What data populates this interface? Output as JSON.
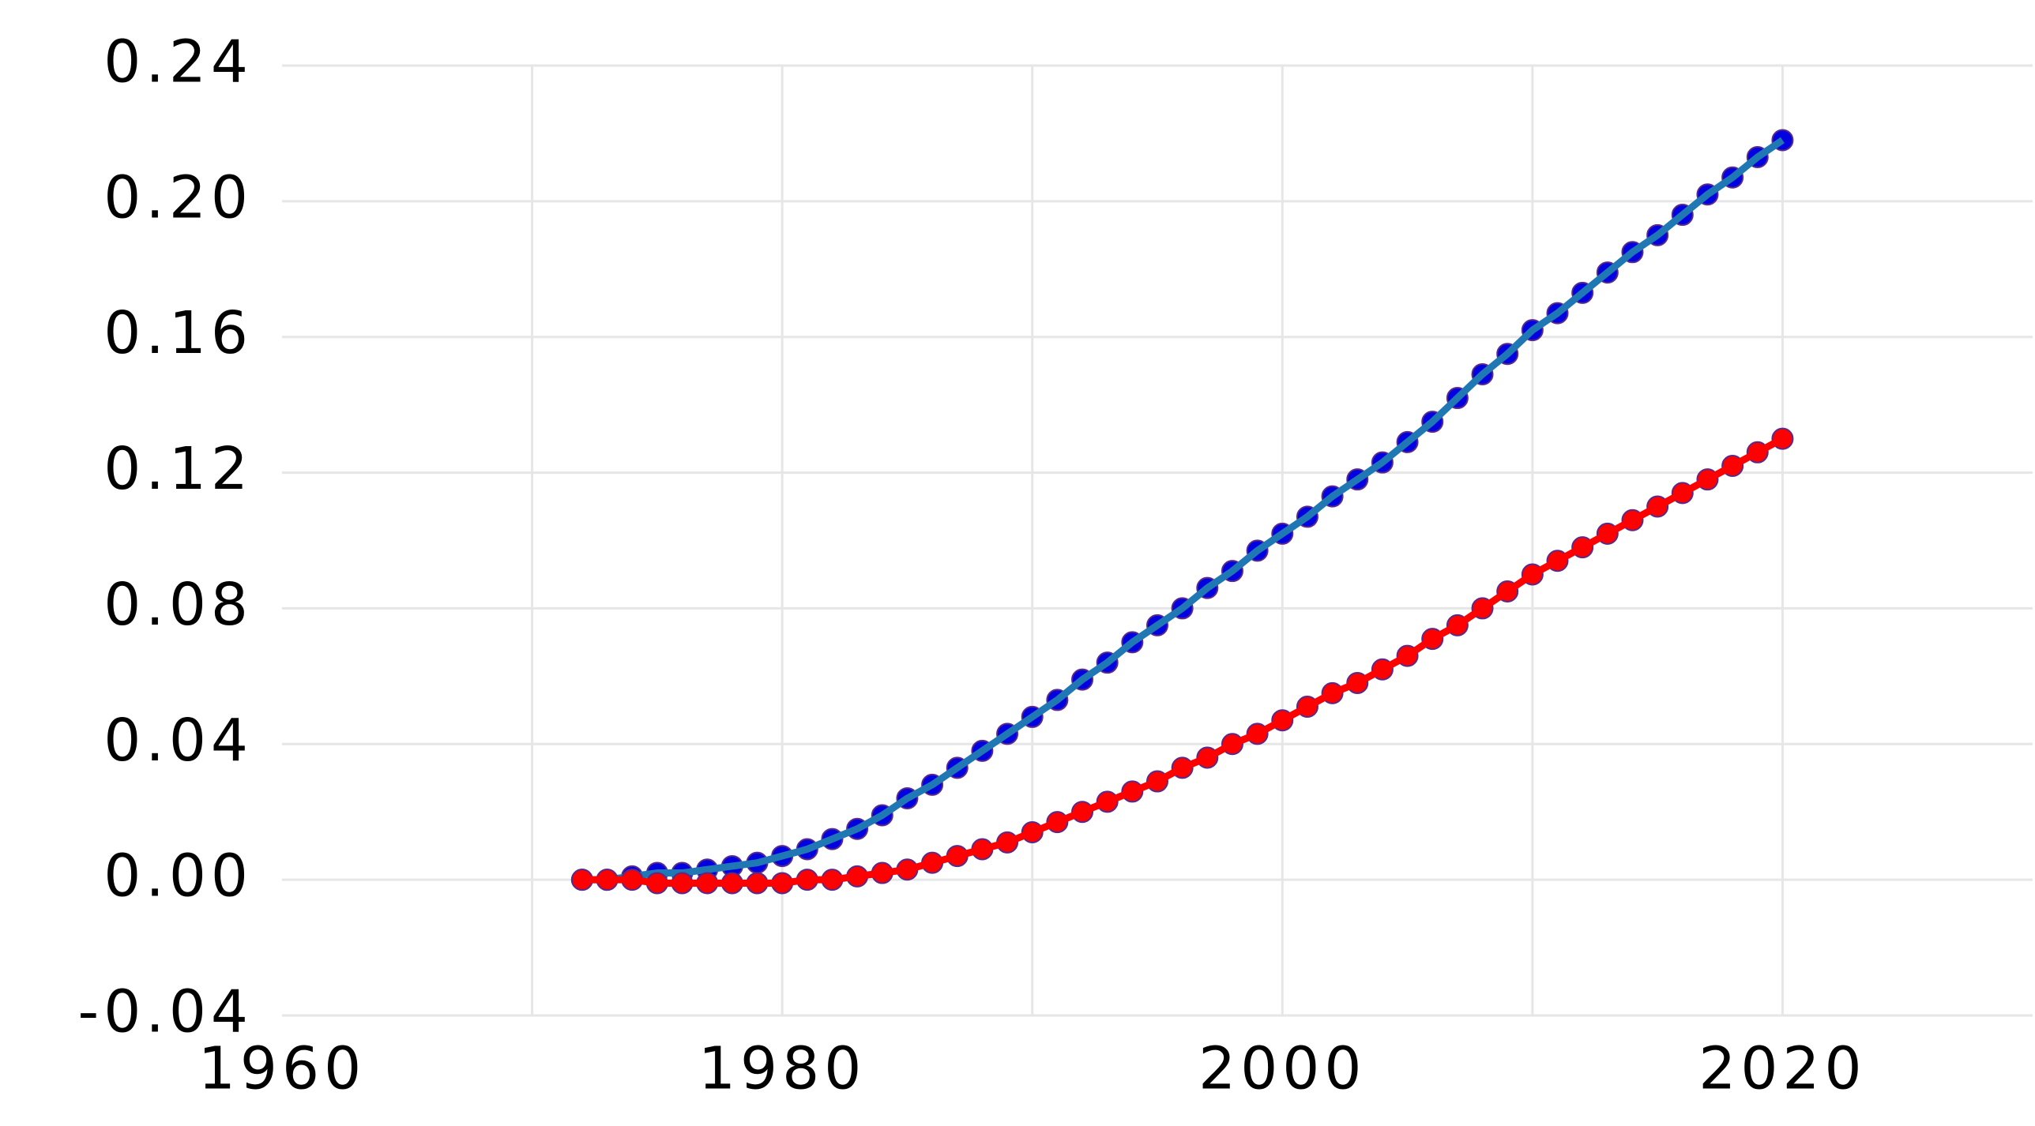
{
  "chart_data": {
    "type": "line",
    "x": [
      1972,
      1973,
      1974,
      1975,
      1976,
      1977,
      1978,
      1979,
      1980,
      1981,
      1982,
      1983,
      1984,
      1985,
      1986,
      1987,
      1988,
      1989,
      1990,
      1991,
      1992,
      1993,
      1994,
      1995,
      1996,
      1997,
      1998,
      1999,
      2000,
      2001,
      2002,
      2003,
      2004,
      2005,
      2006,
      2007,
      2008,
      2009,
      2010,
      2011,
      2012,
      2013,
      2014,
      2015,
      2016,
      2017,
      2018,
      2019,
      2020
    ],
    "series": [
      {
        "color": "#0000e0",
        "line_color": "#1f77b4",
        "values": [
          0.0,
          0.0,
          0.001,
          0.002,
          0.002,
          0.003,
          0.004,
          0.005,
          0.007,
          0.009,
          0.012,
          0.015,
          0.019,
          0.024,
          0.028,
          0.033,
          0.038,
          0.043,
          0.048,
          0.053,
          0.059,
          0.064,
          0.07,
          0.075,
          0.08,
          0.086,
          0.091,
          0.097,
          0.102,
          0.107,
          0.113,
          0.118,
          0.123,
          0.129,
          0.135,
          0.142,
          0.149,
          0.155,
          0.162,
          0.167,
          0.173,
          0.179,
          0.185,
          0.19,
          0.196,
          0.202,
          0.207,
          0.213,
          0.218
        ]
      },
      {
        "color": "#ff0000",
        "line_color": "#ff0000",
        "values": [
          0.0,
          0.0,
          0.0,
          -0.001,
          -0.001,
          -0.001,
          -0.001,
          -0.001,
          -0.001,
          0.0,
          0.0,
          0.001,
          0.002,
          0.003,
          0.005,
          0.007,
          0.009,
          0.011,
          0.014,
          0.017,
          0.02,
          0.023,
          0.026,
          0.029,
          0.033,
          0.036,
          0.04,
          0.043,
          0.047,
          0.051,
          0.055,
          0.058,
          0.062,
          0.066,
          0.071,
          0.075,
          0.08,
          0.085,
          0.09,
          0.094,
          0.098,
          0.102,
          0.106,
          0.11,
          0.114,
          0.118,
          0.122,
          0.126,
          0.13
        ]
      }
    ],
    "xlim": [
      1960,
      2030
    ],
    "xticks": [
      1960,
      1980,
      2000,
      2020
    ],
    "x_minor_ticks": [
      1970,
      1990,
      2010
    ],
    "ylim": [
      -0.04,
      0.24
    ],
    "yticks": [
      {
        "value": -0.04,
        "label": "-0.04"
      },
      {
        "value": 0,
        "label": "0.00"
      },
      {
        "value": 0.04,
        "label": "0.04"
      },
      {
        "value": 0.08,
        "label": "0.08"
      },
      {
        "value": 0.12,
        "label": "0.12"
      },
      {
        "value": 0.16,
        "label": "0.16"
      },
      {
        "value": 0.2,
        "label": "0.20"
      },
      {
        "value": 0.24,
        "label": "0.24"
      }
    ],
    "grid": true
  }
}
